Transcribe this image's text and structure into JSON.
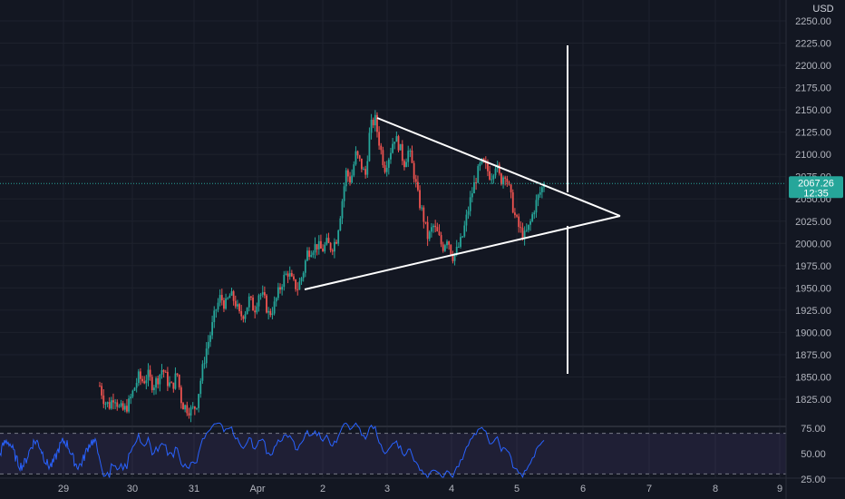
{
  "header": {
    "currency": "USD"
  },
  "price_axis": {
    "ticks": [
      "2250.00",
      "2225.00",
      "2200.00",
      "2175.00",
      "2150.00",
      "2125.00",
      "2100.00",
      "2075.00",
      "2050.00",
      "2025.00",
      "2000.00",
      "1975.00",
      "1950.00",
      "1925.00",
      "1900.00",
      "1875.00",
      "1850.00",
      "1825.00"
    ],
    "last_price": "2067.26",
    "countdown": "12:35"
  },
  "rsi_axis": {
    "ticks": [
      "75.00",
      "50.00",
      "25.00"
    ]
  },
  "time_axis": {
    "ticks": [
      "29",
      "30",
      "31",
      "Apr",
      "2",
      "3",
      "4",
      "5",
      "6",
      "7",
      "8",
      "9"
    ]
  },
  "colors": {
    "background": "#131722",
    "up": "#26a69a",
    "down": "#ef5350",
    "rsi_line": "#2962ff",
    "rsi_band": "#7e57c2",
    "drawing": "#ffffff",
    "last_price": "#26a69a"
  },
  "chart_data": {
    "type": "candlestick",
    "price_scale": {
      "min": 1812,
      "max": 2258
    },
    "rsi_scale": {
      "min": 20,
      "max": 82
    },
    "close_path": [
      1840,
      1822,
      1818,
      1830,
      1815,
      1812,
      1820,
      1835,
      1850,
      1845,
      1852,
      1840,
      1848,
      1860,
      1845,
      1838,
      1855,
      1820,
      1815,
      1812,
      1818,
      1850,
      1880,
      1900,
      1925,
      1940,
      1930,
      1942,
      1935,
      1918,
      1922,
      1938,
      1925,
      1945,
      1938,
      1920,
      1928,
      1945,
      1960,
      1968,
      1955,
      1950,
      1965,
      1990,
      1995,
      1998,
      1992,
      2000,
      1995,
      2005,
      2040,
      2080,
      2070,
      2100,
      2090,
      2075,
      2130,
      2140,
      2110,
      2085,
      2100,
      2120,
      2110,
      2090,
      2105,
      2080,
      2050,
      2030,
      2005,
      2020,
      2010,
      1995,
      2008,
      1985,
      1992,
      2005,
      2030,
      2055,
      2075,
      2090,
      2085,
      2075,
      2090,
      2070,
      2080,
      2055,
      2030,
      2015,
      2008,
      2020,
      2040,
      2055,
      2067
    ],
    "annotations": {
      "triangle": {
        "apex": {
          "date": "Apr 6 14:00",
          "price": 2028
        },
        "upper_start": {
          "date": "Apr 2 20:00",
          "price": 2143
        },
        "lower_start": {
          "date": "Apr 1 23:00",
          "price": 1948
        }
      },
      "vertical_line": {
        "date": "Apr 5 19:00",
        "price_from": 1852,
        "price_to": 2222
      }
    },
    "rsi_band": [
      30,
      70
    ]
  }
}
